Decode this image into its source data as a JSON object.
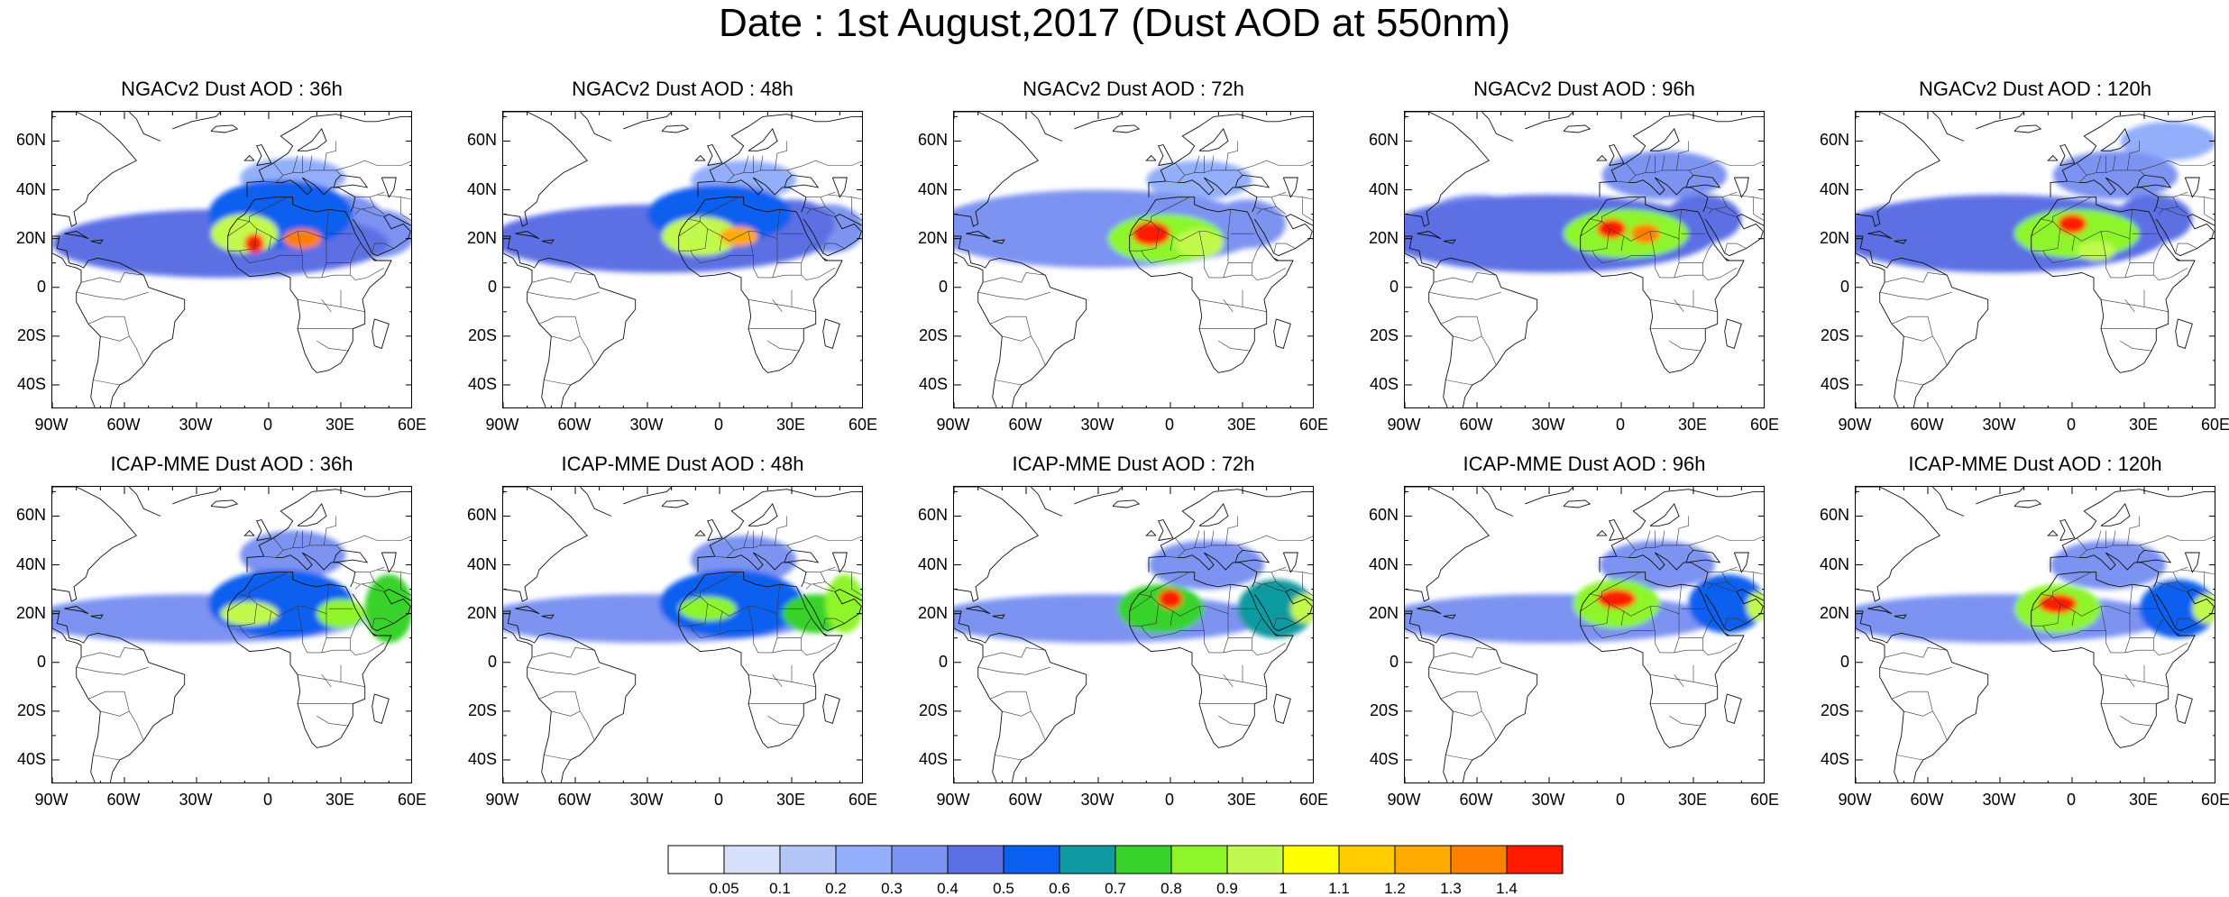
{
  "title": "Date : 1st August,2017 (Dust AOD at 550nm)",
  "panels": [
    {
      "title": "NGACv2 Dust AOD : 36h",
      "model": "NGACv2",
      "lead": "36h",
      "blobs": [
        [
          -20,
          18,
          70,
          14,
          0.45
        ],
        [
          5,
          30,
          30,
          14,
          0.5
        ],
        [
          -10,
          22,
          14,
          8,
          0.9
        ],
        [
          14,
          20,
          8,
          4,
          1.3
        ],
        [
          -6,
          18,
          4,
          4,
          1.4
        ],
        [
          30,
          28,
          18,
          10,
          0.35
        ],
        [
          45,
          22,
          16,
          10,
          0.3
        ],
        [
          10,
          45,
          22,
          8,
          0.25
        ]
      ]
    },
    {
      "title": "NGACv2 Dust AOD : 48h",
      "model": "NGACv2",
      "lead": "48h",
      "blobs": [
        [
          -25,
          20,
          70,
          14,
          0.45
        ],
        [
          0,
          30,
          30,
          12,
          0.5
        ],
        [
          -8,
          21,
          16,
          8,
          0.9
        ],
        [
          8,
          21,
          8,
          4,
          1.2
        ],
        [
          30,
          26,
          18,
          10,
          0.4
        ],
        [
          46,
          24,
          14,
          10,
          0.35
        ],
        [
          10,
          44,
          22,
          8,
          0.25
        ]
      ]
    },
    {
      "title": "NGACv2 Dust AOD : 72h",
      "model": "NGACv2",
      "lead": "72h",
      "blobs": [
        [
          -30,
          24,
          70,
          16,
          0.35
        ],
        [
          -2,
          20,
          24,
          10,
          0.8
        ],
        [
          -8,
          22,
          8,
          5,
          1.4
        ],
        [
          12,
          18,
          10,
          6,
          0.9
        ],
        [
          32,
          26,
          16,
          10,
          0.35
        ],
        [
          12,
          44,
          22,
          8,
          0.25
        ]
      ]
    },
    {
      "title": "NGACv2 Dust AOD : 96h",
      "model": "NGACv2",
      "lead": "96h",
      "blobs": [
        [
          -30,
          22,
          70,
          16,
          0.4
        ],
        [
          2,
          22,
          26,
          10,
          0.8
        ],
        [
          -4,
          24,
          6,
          4,
          1.4
        ],
        [
          10,
          22,
          6,
          4,
          1.3
        ],
        [
          34,
          28,
          16,
          10,
          0.4
        ],
        [
          18,
          46,
          26,
          10,
          0.35
        ],
        [
          -60,
          30,
          20,
          8,
          0.3
        ]
      ]
    },
    {
      "title": "NGACv2 Dust AOD : 120h",
      "model": "NGACv2",
      "lead": "120h",
      "blobs": [
        [
          -30,
          22,
          70,
          16,
          0.4
        ],
        [
          2,
          22,
          26,
          10,
          0.8
        ],
        [
          0,
          26,
          6,
          4,
          1.4
        ],
        [
          10,
          15,
          8,
          4,
          0.9
        ],
        [
          34,
          28,
          16,
          10,
          0.4
        ],
        [
          18,
          46,
          26,
          10,
          0.35
        ],
        [
          40,
          60,
          20,
          8,
          0.25
        ]
      ]
    },
    {
      "title": "ICAP-MME Dust AOD : 36h",
      "model": "ICAP-MME",
      "lead": "36h",
      "blobs": [
        [
          -30,
          18,
          70,
          10,
          0.35
        ],
        [
          5,
          24,
          30,
          14,
          0.5
        ],
        [
          -8,
          20,
          12,
          5,
          0.9
        ],
        [
          30,
          20,
          10,
          6,
          0.8
        ],
        [
          50,
          22,
          10,
          14,
          0.7
        ],
        [
          10,
          44,
          22,
          10,
          0.3
        ]
      ]
    },
    {
      "title": "ICAP-MME Dust AOD : 48h",
      "model": "ICAP-MME",
      "lead": "48h",
      "blobs": [
        [
          -30,
          18,
          70,
          10,
          0.35
        ],
        [
          5,
          24,
          30,
          14,
          0.5
        ],
        [
          -5,
          22,
          12,
          5,
          0.85
        ],
        [
          40,
          20,
          14,
          8,
          0.7
        ],
        [
          52,
          24,
          8,
          12,
          0.8
        ],
        [
          10,
          42,
          22,
          10,
          0.3
        ]
      ]
    },
    {
      "title": "ICAP-MME Dust AOD : 72h",
      "model": "ICAP-MME",
      "lead": "72h",
      "blobs": [
        [
          -30,
          18,
          70,
          10,
          0.35
        ],
        [
          -4,
          22,
          18,
          10,
          0.75
        ],
        [
          0,
          26,
          5,
          4,
          1.4
        ],
        [
          44,
          22,
          16,
          12,
          0.6
        ],
        [
          56,
          22,
          6,
          6,
          0.9
        ],
        [
          15,
          40,
          24,
          10,
          0.3
        ]
      ]
    },
    {
      "title": "ICAP-MME Dust AOD : 96h",
      "model": "ICAP-MME",
      "lead": "96h",
      "blobs": [
        [
          -30,
          18,
          70,
          10,
          0.35
        ],
        [
          -2,
          24,
          18,
          10,
          0.8
        ],
        [
          -2,
          26,
          8,
          4,
          1.4
        ],
        [
          44,
          24,
          16,
          12,
          0.55
        ],
        [
          57,
          23,
          5,
          6,
          0.9
        ],
        [
          15,
          40,
          24,
          10,
          0.3
        ]
      ]
    },
    {
      "title": "ICAP-MME Dust AOD : 120h",
      "model": "ICAP-MME",
      "lead": "120h",
      "blobs": [
        [
          -30,
          18,
          70,
          10,
          0.35
        ],
        [
          -6,
          22,
          18,
          10,
          0.8
        ],
        [
          -6,
          24,
          8,
          4,
          1.4
        ],
        [
          44,
          22,
          16,
          12,
          0.55
        ],
        [
          56,
          22,
          6,
          6,
          0.9
        ],
        [
          15,
          40,
          24,
          10,
          0.3
        ]
      ]
    }
  ],
  "lat_ticks": [
    "60N",
    "40N",
    "20N",
    "0",
    "20S",
    "40S"
  ],
  "lon_ticks": [
    "90W",
    "60W",
    "30W",
    "0",
    "30E",
    "60E"
  ],
  "colorbar": {
    "colors": [
      "#ffffff",
      "#d6e0fb",
      "#b3c6f7",
      "#93affb",
      "#7b93f1",
      "#5b6fe4",
      "#0a5ef0",
      "#0e9aa0",
      "#39d22c",
      "#8ef52a",
      "#c2f94e",
      "#ffff00",
      "#ffcc00",
      "#ffaa00",
      "#ff8000",
      "#ff1a00"
    ],
    "labels": [
      "0.05",
      "0.1",
      "0.2",
      "0.3",
      "0.4",
      "0.5",
      "0.6",
      "0.7",
      "0.8",
      "0.9",
      "1",
      "1.1",
      "1.2",
      "1.3",
      "1.4"
    ]
  }
}
